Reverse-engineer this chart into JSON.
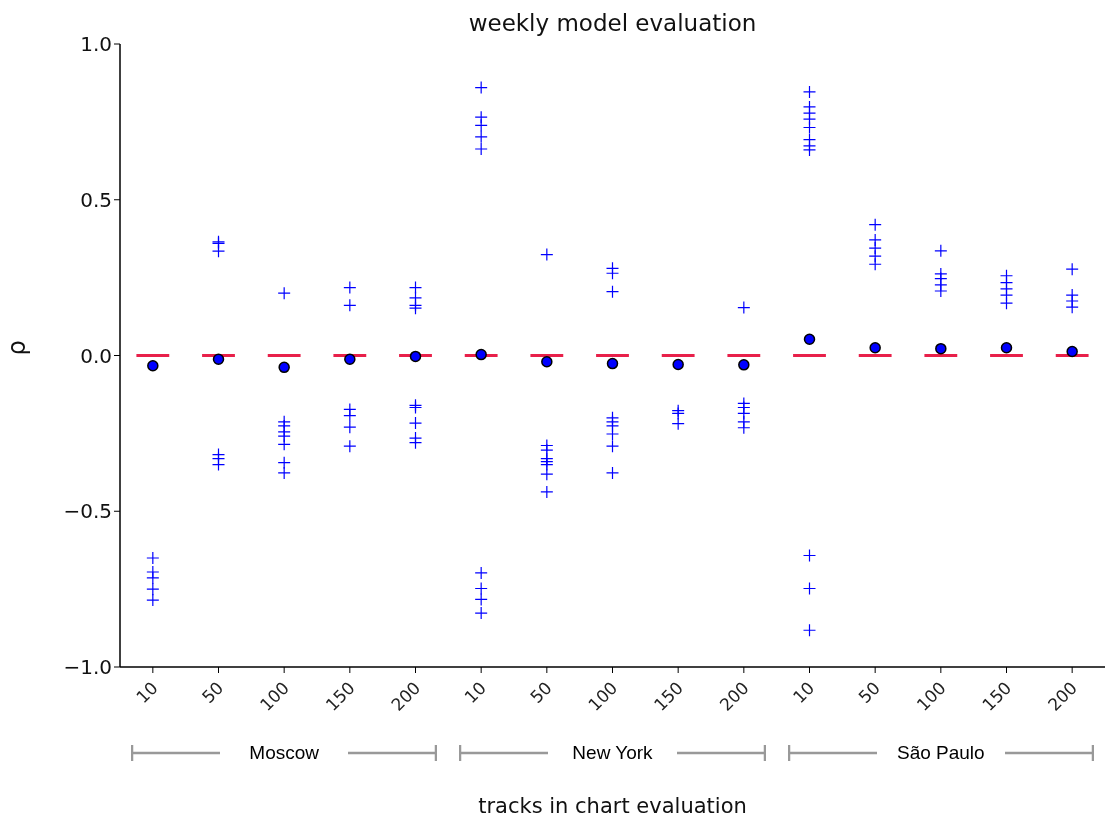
{
  "chart_data": {
    "type": "box",
    "title": "weekly model evaluation",
    "xlabel": "tracks in chart evaluation",
    "ylabel": "ρ",
    "categories": [
      "10",
      "50",
      "100",
      "150",
      "200",
      "10",
      "50",
      "100",
      "150",
      "200",
      "10",
      "50",
      "100",
      "150",
      "200"
    ],
    "color": "#e8204a",
    "marker": "cross",
    "grid": false,
    "legend": false,
    "ylim": [
      -1.0,
      1.0
    ],
    "yticks": [
      {
        "value": -1.0,
        "label": "−1.0"
      },
      {
        "value": -0.5,
        "label": "−0.5"
      },
      {
        "value": 0.0,
        "label": "0.0"
      },
      {
        "value": 0.5,
        "label": "0.5"
      },
      {
        "value": 1.0,
        "label": "1.0"
      }
    ],
    "annotations": [
      "Moscow",
      "New York",
      "São Paulo"
    ],
    "boxes": [
      {
        "low": 0,
        "q1": 0,
        "median": 0,
        "q3": 0,
        "high": 0,
        "mean": -0.033,
        "outliers": [
          -0.65,
          -0.695,
          -0.714,
          -0.75,
          -0.785
        ]
      },
      {
        "low": 0,
        "q1": 0,
        "median": 0,
        "q3": 0,
        "high": 0,
        "mean": -0.012,
        "outliers": [
          0.365,
          0.36,
          0.335,
          -0.318,
          -0.331,
          -0.35
        ]
      },
      {
        "low": 0,
        "q1": 0,
        "median": 0,
        "q3": 0,
        "high": 0,
        "mean": -0.038,
        "outliers": [
          0.2,
          -0.213,
          -0.226,
          -0.245,
          -0.259,
          -0.285,
          -0.344,
          -0.377
        ]
      },
      {
        "low": 0,
        "q1": 0,
        "median": 0,
        "q3": 0,
        "high": 0,
        "mean": -0.012,
        "outliers": [
          0.218,
          0.161,
          -0.173,
          -0.193,
          -0.23,
          -0.291
        ]
      },
      {
        "low": 0,
        "q1": 0,
        "median": 0,
        "q3": 0,
        "high": 0,
        "mean": -0.003,
        "outliers": [
          0.218,
          0.185,
          0.161,
          0.152,
          -0.16,
          -0.167,
          -0.217,
          -0.265,
          -0.28
        ]
      },
      {
        "low": 0,
        "q1": 0,
        "median": 0,
        "q3": 0,
        "high": 0,
        "mean": 0.003,
        "outliers": [
          0.86,
          0.765,
          0.739,
          0.702,
          0.663,
          -0.698,
          -0.748,
          -0.783,
          -0.827
        ]
      },
      {
        "low": 0,
        "q1": 0,
        "median": 0,
        "q3": 0,
        "high": 0,
        "mean": -0.02,
        "outliers": [
          0.324,
          -0.289,
          -0.304,
          -0.331,
          -0.341,
          -0.35,
          -0.381,
          -0.438
        ]
      },
      {
        "low": 0,
        "q1": 0,
        "median": 0,
        "q3": 0,
        "high": 0,
        "mean": -0.026,
        "outliers": [
          0.28,
          0.264,
          0.205,
          -0.2,
          -0.213,
          -0.226,
          -0.252,
          -0.291,
          -0.377
        ]
      },
      {
        "low": 0,
        "q1": 0,
        "median": 0,
        "q3": 0,
        "high": 0,
        "mean": -0.029,
        "outliers": [
          -0.177,
          -0.186,
          -0.219
        ]
      },
      {
        "low": 0,
        "q1": 0,
        "median": 0,
        "q3": 0,
        "high": 0,
        "mean": -0.03,
        "outliers": [
          0.154,
          -0.154,
          -0.167,
          -0.186,
          -0.213,
          -0.232
        ]
      },
      {
        "low": 0,
        "q1": 0,
        "median": 0,
        "q3": 0,
        "high": 0,
        "mean": 0.052,
        "outliers": [
          0.846,
          0.798,
          0.778,
          0.759,
          0.732,
          0.693,
          0.673,
          0.66,
          -0.642,
          -0.748,
          -0.882
        ]
      },
      {
        "low": 0,
        "q1": 0,
        "median": 0,
        "q3": 0,
        "high": 0,
        "mean": 0.025,
        "outliers": [
          0.42,
          0.371,
          0.345,
          0.319,
          0.293
        ]
      },
      {
        "low": 0,
        "q1": 0,
        "median": 0,
        "q3": 0,
        "high": 0,
        "mean": 0.022,
        "outliers": [
          0.336,
          0.262,
          0.247,
          0.227,
          0.207
        ]
      },
      {
        "low": 0,
        "q1": 0,
        "median": 0,
        "q3": 0,
        "high": 0,
        "mean": 0.025,
        "outliers": [
          0.256,
          0.234,
          0.214,
          0.194,
          0.168
        ]
      },
      {
        "low": 0,
        "q1": 0,
        "median": 0,
        "q3": 0,
        "high": 0,
        "mean": 0.013,
        "outliers": [
          0.277,
          0.194,
          0.175,
          0.155
        ]
      }
    ]
  }
}
